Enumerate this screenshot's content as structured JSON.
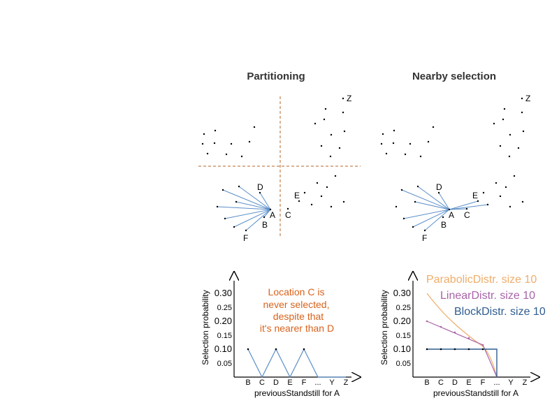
{
  "colors": {
    "partition": "#b3662a",
    "link": "#5b8fc9",
    "block": "#2f5d8f",
    "linear": "#a864a8",
    "parabolic": "#f0ad6a",
    "annotation": "#d9621a",
    "axis": "#000000"
  },
  "left": {
    "title": "Partitioning",
    "labels": [
      "Z",
      "D",
      "A",
      "B",
      "C",
      "E",
      "F"
    ],
    "annotation": [
      "Location C is",
      "never selected,",
      "despite that",
      "it's nearer than D"
    ],
    "chart_data": {
      "type": "line",
      "categories": [
        "B",
        "C",
        "D",
        "E",
        "F",
        "...",
        "Y",
        "Z"
      ],
      "values": [
        0.1,
        0,
        0.1,
        0,
        0.1,
        0,
        0,
        0
      ],
      "ylabel": "Selection probability",
      "xlabel": "previousStandstill for A",
      "yticks": [
        "0.30",
        "0.25",
        "0.20",
        "0.15",
        "0.10",
        "0.05"
      ],
      "ylim": [
        0,
        0.35
      ]
    }
  },
  "right": {
    "title": "Nearby selection",
    "labels": [
      "Z",
      "D",
      "E",
      "A",
      "C",
      "B",
      "F"
    ],
    "chart_data": {
      "type": "line",
      "categories": [
        "B",
        "C",
        "D",
        "E",
        "F",
        "...",
        "Y",
        "Z"
      ],
      "series": [
        {
          "name": "ParabolicDistr. size 10",
          "values": [
            0.3,
            0.24,
            0.19,
            0.15,
            0.11,
            0,
            0,
            0
          ]
        },
        {
          "name": "LinearDistr. size 10",
          "values": [
            0.2,
            0.18,
            0.16,
            0.14,
            0.115,
            0,
            0,
            0
          ]
        },
        {
          "name": "BlockDistr. size 10",
          "values": [
            0.1,
            0.1,
            0.1,
            0.1,
            0.1,
            0,
            0,
            0
          ]
        }
      ],
      "ylabel": "Selection probability",
      "xlabel": "previousStandstill for A",
      "yticks": [
        "0.30",
        "0.25",
        "0.20",
        "0.15",
        "0.10",
        "0.05"
      ],
      "ylim": [
        0,
        0.35
      ]
    }
  }
}
